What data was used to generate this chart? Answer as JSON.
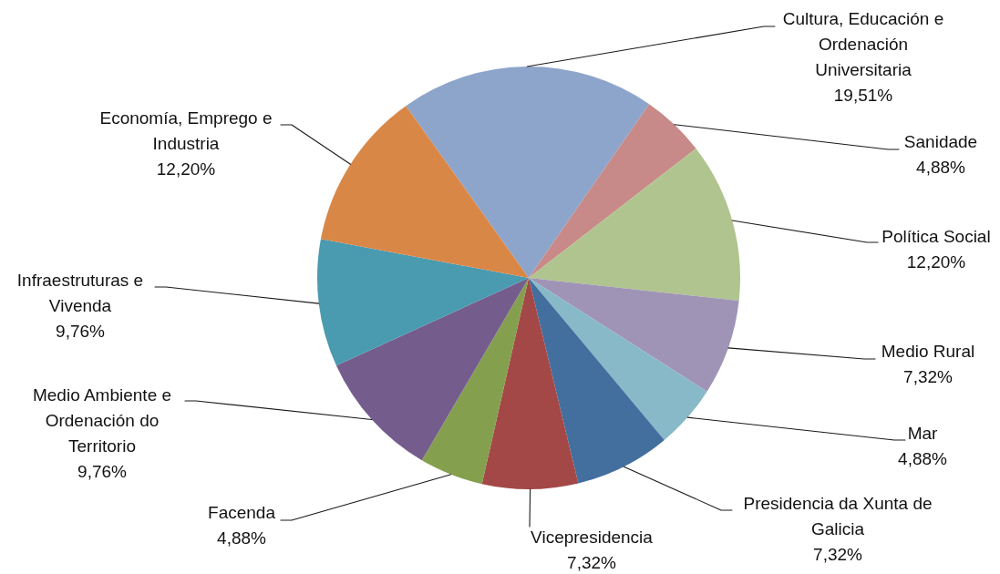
{
  "chart_data": {
    "type": "pie",
    "categories": [
      "Cultura, Educación e Ordenación Universitaria",
      "Sanidade",
      "Política Social",
      "Medio Rural",
      "Mar",
      "Presidencia da Xunta de Galicia",
      "Vicepresidencia",
      "Facenda",
      "Medio Ambiente e Ordenación do Territorio",
      "Infraestruturas e Vivenda",
      "Economía, Emprego e Industria"
    ],
    "values": [
      19.51,
      4.88,
      12.2,
      7.32,
      4.88,
      7.32,
      7.32,
      4.88,
      9.76,
      9.76,
      12.2
    ],
    "colors": [
      "#8ea5cb",
      "#c88a88",
      "#b0c48f",
      "#a094b6",
      "#88b9c8",
      "#436f9f",
      "#a34846",
      "#84a04e",
      "#745c8c",
      "#4a9ab0",
      "#d98747"
    ],
    "value_labels": [
      "19,51%",
      "4,88%",
      "12,20%",
      "7,32%",
      "4,88%",
      "7,32%",
      "7,32%",
      "4,88%",
      "9,76%",
      "9,76%",
      "12,20%"
    ]
  }
}
